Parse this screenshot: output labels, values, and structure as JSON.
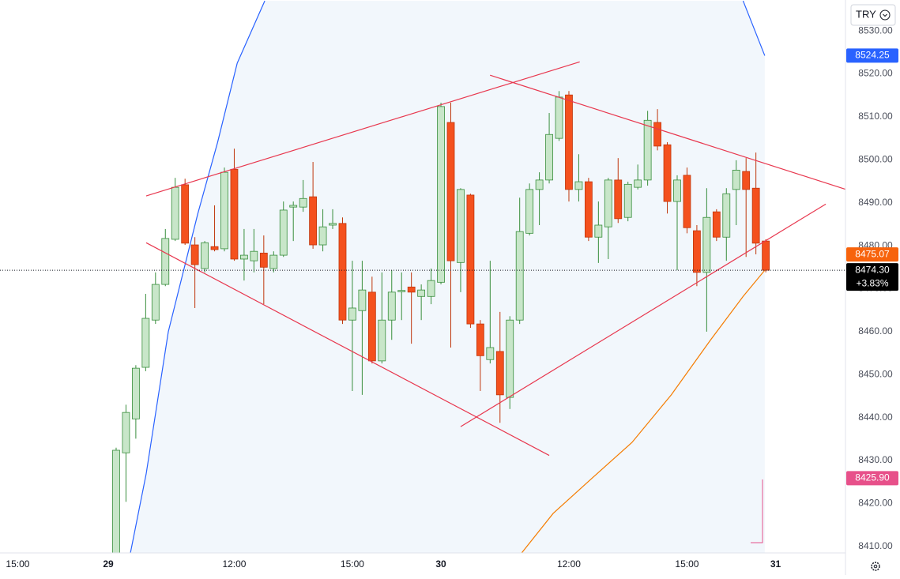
{
  "chart_data": {
    "type": "candlestick",
    "currency": "TRY",
    "up_color": "#c8e6c9",
    "up_border": "#388e3c",
    "down_color": "#f4511e",
    "down_border": "#bf360c",
    "xlim": [
      -11.8,
      74.1
    ],
    "xticks": [
      {
        "value": -10,
        "label": "15:00"
      },
      {
        "value": -0.8,
        "label": "29"
      },
      {
        "value": 12,
        "label": "12:00"
      },
      {
        "value": 24,
        "label": "15:00"
      },
      {
        "value": 33,
        "label": "30"
      },
      {
        "value": 46,
        "label": "12:00"
      },
      {
        "value": 58,
        "label": "15:00"
      },
      {
        "value": 67,
        "label": "31"
      }
    ],
    "ylim": [
      8408.5,
      8537.2
    ],
    "yticks": [
      {
        "value": 8410,
        "label": "8410.00"
      },
      {
        "value": 8420,
        "label": "8420.00"
      },
      {
        "value": 8430,
        "label": "8430.00"
      },
      {
        "value": 8440,
        "label": "8440.00"
      },
      {
        "value": 8450,
        "label": "8450.00"
      },
      {
        "value": 8460,
        "label": "8460.00"
      },
      {
        "value": 8470,
        "label": "8470.00"
      },
      {
        "value": 8480,
        "label": "8480.00"
      },
      {
        "value": 8490,
        "label": "8490.00"
      },
      {
        "value": 8500,
        "label": "8500.00"
      },
      {
        "value": 8510,
        "label": "8510.00"
      },
      {
        "value": 8520,
        "label": "8520.00"
      },
      {
        "value": 8530,
        "label": "8530.00"
      }
    ],
    "grid": false,
    "x": [
      0,
      1,
      2,
      3,
      4,
      5,
      6,
      7,
      8,
      9,
      10,
      11,
      12,
      13,
      14,
      15,
      16,
      17,
      18,
      19,
      20,
      21,
      22,
      23,
      24,
      25,
      26,
      27,
      28,
      29,
      30,
      31,
      32,
      33,
      34,
      35,
      36,
      37,
      38,
      39,
      40,
      41,
      42,
      43,
      44,
      45,
      46,
      47,
      48,
      49,
      50,
      51,
      52,
      53,
      54,
      55,
      56,
      57,
      58,
      59,
      60,
      61,
      62,
      63,
      64,
      65,
      66
    ],
    "open": [
      8406,
      8431.8,
      8439.7,
      8451.7,
      8462.7,
      8471.0,
      8481.5,
      8494.2,
      8480.2,
      8474.7,
      8479.8,
      8479.3,
      8497.8,
      8476.9,
      8476.5,
      8478.3,
      8474.7,
      8477.8,
      8489.0,
      8489.0,
      8491.4,
      8480.2,
      8484.8,
      8485.2,
      8462.7,
      8464.9,
      8469.2,
      8453.2,
      8462.7,
      8469.3,
      8470.4,
      8468.2,
      8468.2,
      8471.5,
      8508.7,
      8476.1,
      8491.8,
      8461.8,
      8453.5,
      8455.4,
      8444.7,
      8462.7,
      8482.9,
      8493.1,
      8495.3,
      8505.0,
      8515.1,
      8493.1,
      8494.9,
      8482.0,
      8484.4,
      8495.3,
      8486.6,
      8493.6,
      8495.3,
      8508.7,
      8503.5,
      8490.3,
      8496.4,
      8483.5,
      8473.8,
      8487.9,
      8482.0,
      8493.1,
      8497.3,
      8493.4,
      8481.1
    ],
    "high": [
      8433,
      8443.0,
      8452.2,
      8468.8,
      8473.8,
      8483.9,
      8495.8,
      8495.6,
      8482.0,
      8481.1,
      8489.4,
      8498.2,
      8502.6,
      8483.9,
      8483.9,
      8482.4,
      8478.7,
      8490.3,
      8490.3,
      8495.3,
      8499.5,
      8488.5,
      8488.5,
      8486.6,
      8476.5,
      8476.5,
      8472.8,
      8473.8,
      8474.3,
      8473.8,
      8473.8,
      8471.0,
      8474.7,
      8513.3,
      8513.3,
      8493.4,
      8492.1,
      8462.7,
      8476.5,
      8464.6,
      8463.6,
      8491.2,
      8494.5,
      8497.1,
      8510.9,
      8516.0,
      8516.0,
      8501.3,
      8495.8,
      8490.3,
      8495.8,
      8500.4,
      8494.9,
      8498.9,
      8511.4,
      8511.8,
      8504.1,
      8496.4,
      8498.2,
      8484.8,
      8493.4,
      8488.5,
      8493.4,
      8499.9,
      8500.4,
      8501.7,
      8481.5
    ],
    "low": [
      8404,
      8420.4,
      8435.1,
      8450.8,
      8461.8,
      8470.6,
      8481.1,
      8480.2,
      8465.5,
      8473.8,
      8478.7,
      8478.7,
      8476.5,
      8471.9,
      8473.8,
      8466.4,
      8473.8,
      8477.4,
      8481.1,
      8487.9,
      8479.3,
      8478.7,
      8483.9,
      8461.8,
      8446.2,
      8445.3,
      8452.6,
      8452.6,
      8458.1,
      8462.7,
      8457.2,
      8462.7,
      8466.4,
      8471.0,
      8456.3,
      8469.2,
      8460.9,
      8446.2,
      8452.6,
      8438.8,
      8442.0,
      8461.8,
      8482.4,
      8484.8,
      8494.5,
      8504.4,
      8490.3,
      8490.3,
      8481.1,
      8476.0,
      8476.9,
      8485.3,
      8485.7,
      8493.1,
      8494.0,
      8502.2,
      8487.5,
      8474.3,
      8482.9,
      8470.6,
      8460.0,
      8481.1,
      8476.5,
      8484.8,
      8477.4,
      8478.0,
      8473.8
    ],
    "close": [
      8432.4,
      8441.2,
      8451.5,
      8463.1,
      8471.0,
      8481.7,
      8493.6,
      8480.6,
      8475.6,
      8480.7,
      8479.1,
      8497.1,
      8476.9,
      8477.8,
      8478.7,
      8475.0,
      8477.8,
      8488.3,
      8489.4,
      8491.0,
      8480.2,
      8484.4,
      8485.2,
      8462.7,
      8465.5,
      8469.7,
      8453.2,
      8462.7,
      8469.2,
      8469.6,
      8469.2,
      8469.7,
      8471.9,
      8512.4,
      8476.5,
      8493.1,
      8461.8,
      8454.4,
      8456.3,
      8445.3,
      8462.7,
      8483.3,
      8493.1,
      8495.3,
      8505.9,
      8514.6,
      8493.1,
      8494.9,
      8482.0,
      8484.8,
      8495.3,
      8486.3,
      8494.3,
      8495.3,
      8509.2,
      8503.2,
      8490.3,
      8495.3,
      8484.2,
      8473.8,
      8486.6,
      8482.0,
      8492.1,
      8497.6,
      8493.1,
      8480.6,
      8474.3
    ],
    "lines": [
      {
        "color": "#2962ff",
        "x": [
          1.45,
          3.05,
          5.3,
          8.3,
          10.3,
          12.3,
          15.1,
          null,
          63.7,
          65.9
        ],
        "values": [
          8408.5,
          8426.9,
          8460,
          8487.5,
          8504,
          8522.5,
          8537,
          null,
          8537,
          8524.25
        ]
      },
      {
        "color": "#f57c00",
        "x": [
          41.2,
          44.4,
          48.4,
          52.4,
          56.4,
          60.4,
          63.7,
          65.9
        ],
        "values": [
          8408.5,
          8417.7,
          8426,
          8434.2,
          8445.3,
          8458.1,
          8468.2,
          8474.3
        ]
      }
    ],
    "band_color": "#f2f7fc",
    "trend_color": "#e8384f",
    "trend_lines": [
      {
        "x": [
          3.05,
          47.1
        ],
        "values": [
          8491.6,
          8522.8
        ]
      },
      {
        "x": [
          37.99,
          74.3
        ],
        "values": [
          8519.7,
          8493.0
        ]
      },
      {
        "x": [
          3.05,
          44.0
        ],
        "values": [
          8480.7,
          8431.2
        ]
      },
      {
        "x": [
          35.0,
          72.1
        ],
        "values": [
          8437.9,
          8489.7
        ]
      }
    ],
    "last_price": {
      "value": 8474.3,
      "label": "8474.30",
      "change": "+3.83%",
      "color": "#000000"
    },
    "price_tags": [
      {
        "value": 8524.25,
        "color": "#2962ff"
      },
      {
        "value": 8475.07,
        "color": "#f7630c"
      },
      {
        "value": 8425.9,
        "label": "8425.90",
        "color": "#e7508a"
      }
    ]
  }
}
